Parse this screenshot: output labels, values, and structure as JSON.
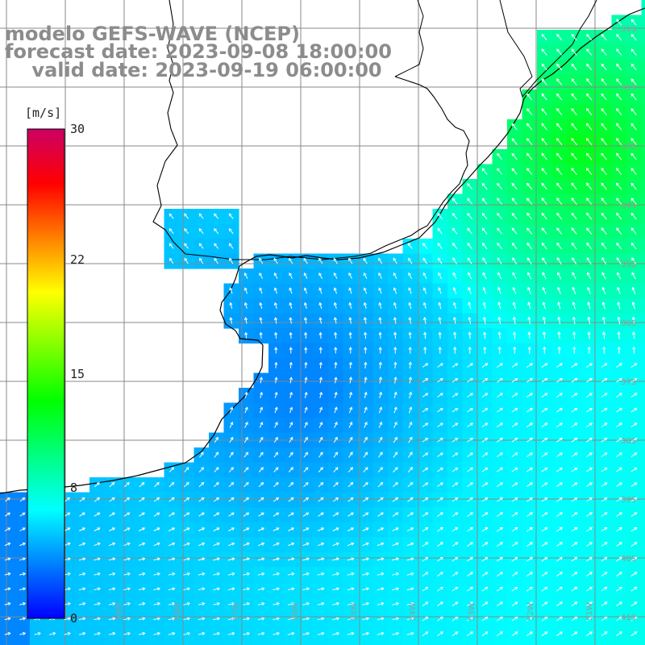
{
  "title": {
    "line1": "modelo GEFS-WAVE (NCEP)",
    "line2": "forecast date: 2023-09-08 18:00:00",
    "line3": "    valid date: 2023-09-19 06:00:00"
  },
  "colorbar": {
    "unit": "[m/s]",
    "ticks": [
      "30",
      "22",
      "15",
      "8",
      "0"
    ],
    "tick_values": [
      30,
      22,
      15,
      8,
      0
    ],
    "range": [
      0,
      30
    ],
    "stops": [
      "#0000ff",
      "#0080ff",
      "#00ffff",
      "#00ff80",
      "#00ff00",
      "#80ff00",
      "#ffff00",
      "#ff8000",
      "#ff0000",
      "#cc0066"
    ]
  },
  "map": {
    "model": "GEFS-WAVE",
    "variable": "wind speed and direction",
    "latitude_labels": [
      "31S",
      "32S",
      "33S",
      "34S",
      "35S",
      "36S",
      "37S",
      "38S",
      "39S",
      "40S",
      "41S"
    ],
    "longitude_labels": [
      "59W",
      "58W",
      "57W",
      "56W",
      "55W",
      "54W",
      "53W",
      "52W",
      "51W"
    ],
    "colors": {
      "land": "#ffffff",
      "coastline": "#000000",
      "grid": "#888888",
      "arrows": "#ffffff"
    }
  }
}
